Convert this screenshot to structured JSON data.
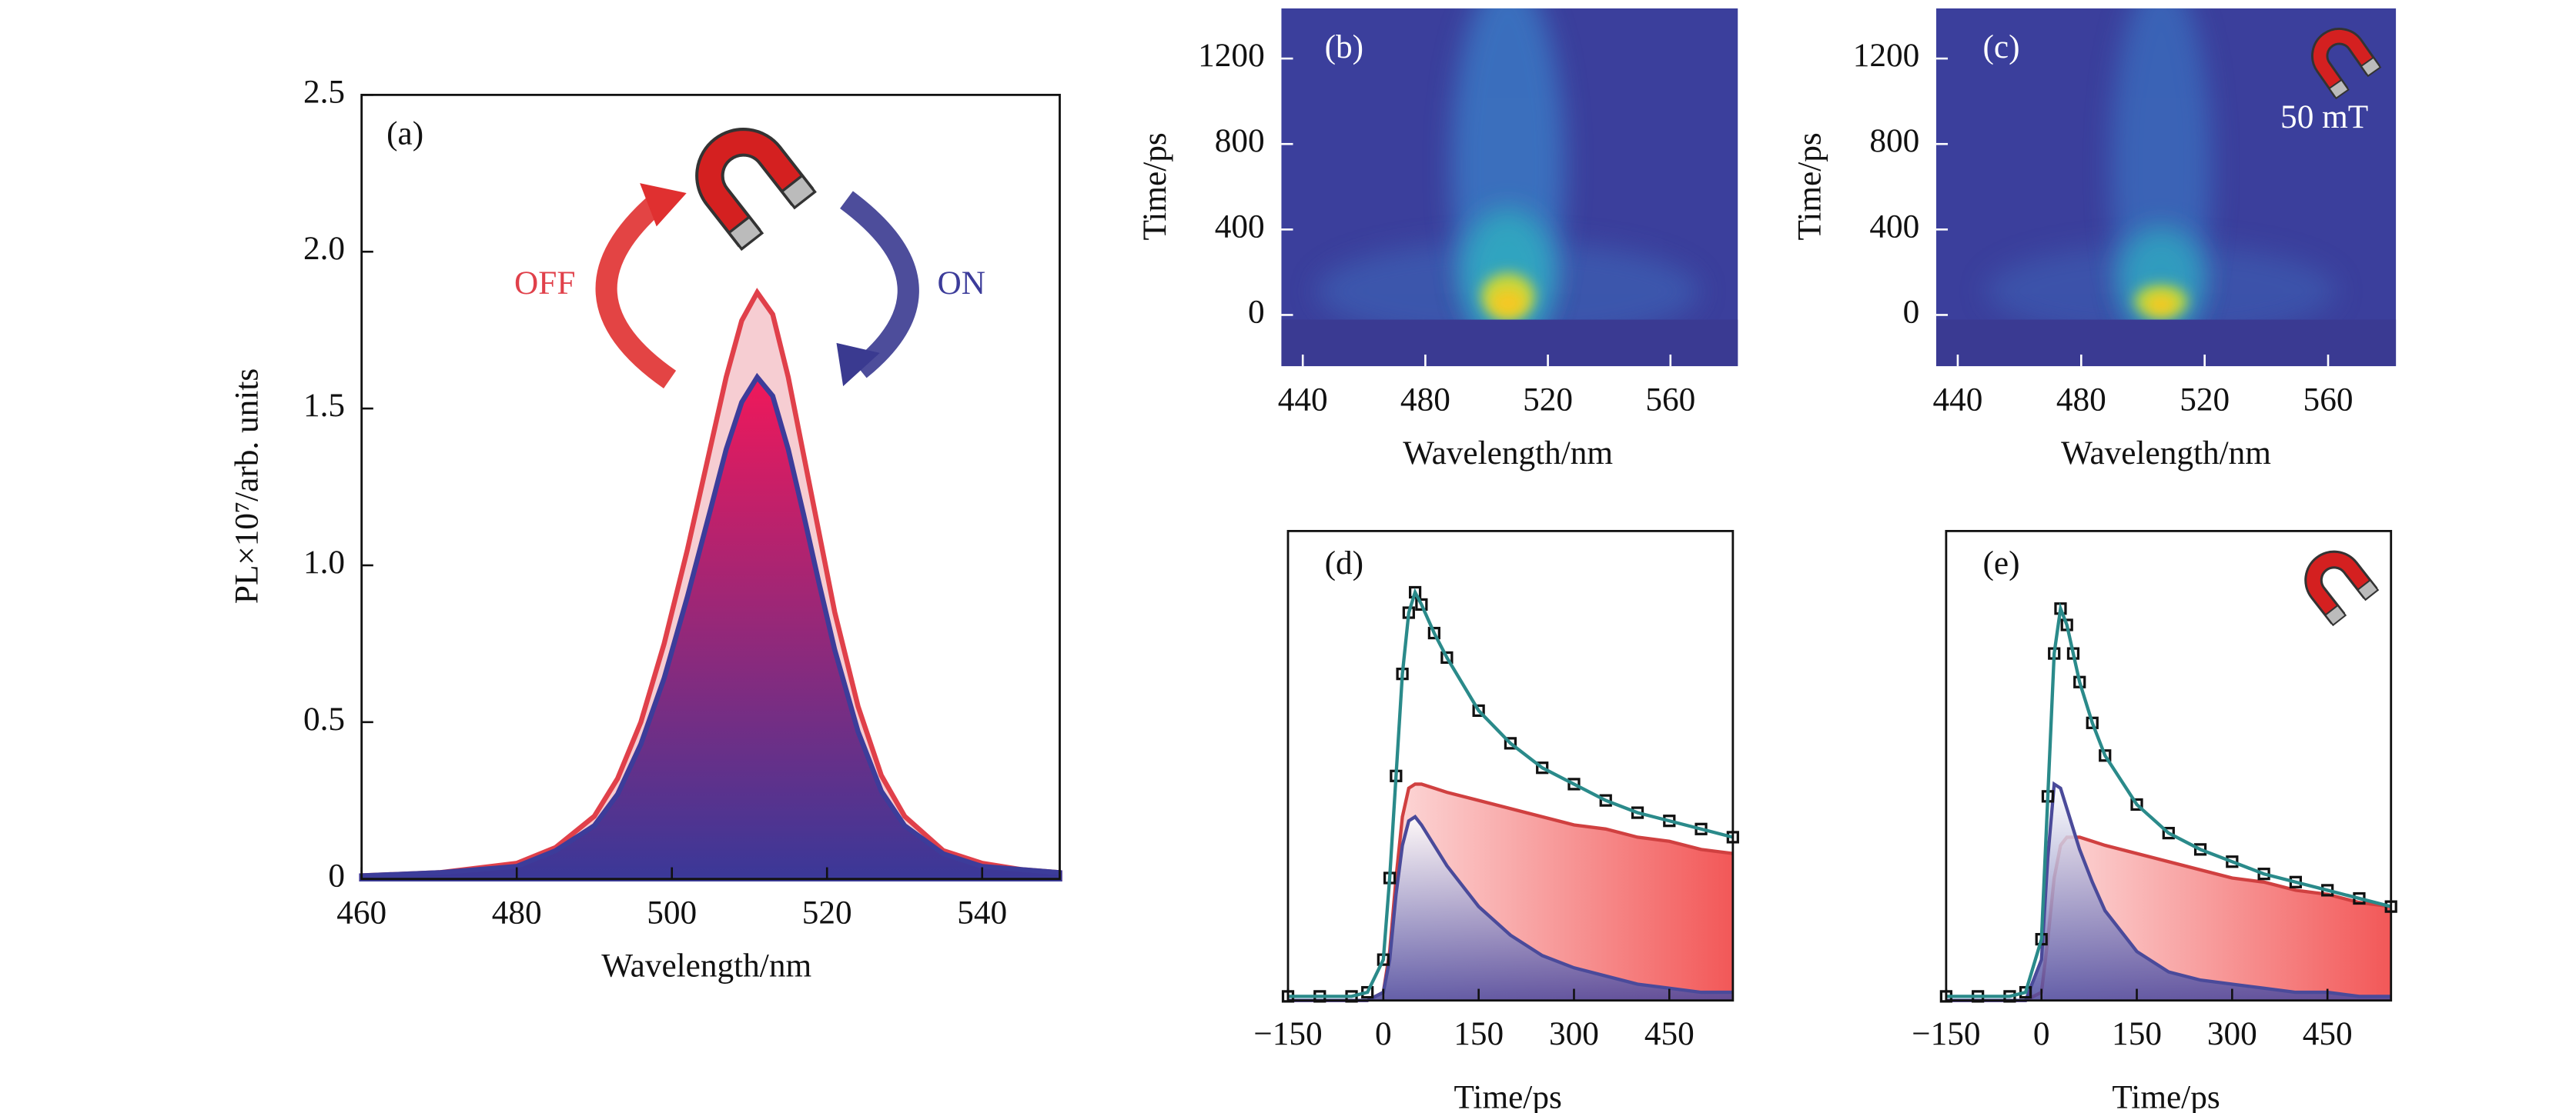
{
  "chart_data": [
    {
      "type": "area",
      "title": "(a)",
      "xlabel": "Wavelength/nm",
      "ylabel": "PL×10⁷/arb. units",
      "x": [
        460,
        470,
        480,
        485,
        490,
        493,
        496,
        499,
        502,
        505,
        507,
        509,
        511,
        513,
        515,
        517,
        519,
        521,
        524,
        527,
        530,
        535,
        540,
        545,
        550
      ],
      "series": [
        {
          "name": "OFF",
          "color": "#e0404a",
          "fill_colors": [
            "#f6cdd2",
            "#f6cdd2"
          ],
          "values": [
            0.01,
            0.02,
            0.05,
            0.1,
            0.2,
            0.32,
            0.5,
            0.75,
            1.05,
            1.38,
            1.6,
            1.78,
            1.87,
            1.8,
            1.6,
            1.35,
            1.1,
            0.85,
            0.55,
            0.33,
            0.2,
            0.09,
            0.05,
            0.03,
            0.02
          ]
        },
        {
          "name": "ON",
          "color": "#3c3c9a",
          "fill_colors": [
            "#f0185a",
            "#3a3898"
          ],
          "values": [
            0.01,
            0.02,
            0.04,
            0.09,
            0.17,
            0.27,
            0.43,
            0.64,
            0.9,
            1.18,
            1.37,
            1.52,
            1.6,
            1.54,
            1.37,
            1.16,
            0.94,
            0.73,
            0.47,
            0.28,
            0.17,
            0.08,
            0.04,
            0.03,
            0.02
          ]
        }
      ],
      "xlim": [
        460,
        550
      ],
      "xticks": [
        460,
        480,
        500,
        520,
        540
      ],
      "ylim": [
        0,
        2.5
      ],
      "yticks": [
        0,
        0.5,
        {
          "value": 1,
          "label": "1.0"
        },
        1.5,
        {
          "value": 2,
          "label": "2.0"
        },
        2.5
      ]
    },
    {
      "type": "heatmap",
      "title": "(b)",
      "xlabel": "Wavelength/nm",
      "ylabel": "Time/ps",
      "xlim": [
        433,
        582
      ],
      "xticks": [
        440,
        480,
        520,
        560
      ],
      "ylim": [
        -240,
        1435
      ],
      "yticks": [
        0,
        400,
        800,
        1200
      ]
    },
    {
      "type": "heatmap",
      "title": "(c)",
      "annotation": "50 mT",
      "xlabel": "Wavelength/nm",
      "ylabel": "Time/ps",
      "xlim": [
        433,
        582
      ],
      "xticks": [
        440,
        480,
        520,
        560
      ],
      "ylim": [
        -240,
        1435
      ],
      "yticks": [
        0,
        400,
        800,
        1200
      ]
    },
    {
      "type": "line",
      "title": "(d)",
      "xlabel": "Time/ps",
      "x": [
        -150,
        -100,
        -50,
        -25,
        0,
        10,
        20,
        30,
        40,
        50,
        60,
        80,
        100,
        150,
        200,
        250,
        300,
        350,
        400,
        450,
        500,
        550
      ],
      "series": [
        {
          "color": "#d04040",
          "fill_colors": [
            "#ffffff",
            "#f03a3a"
          ],
          "fill_direction": "horizontal",
          "values": [
            0,
            0,
            0,
            0,
            0.02,
            0.12,
            0.3,
            0.45,
            0.52,
            0.53,
            0.53,
            0.52,
            0.51,
            0.49,
            0.47,
            0.45,
            0.43,
            0.42,
            0.4,
            0.39,
            0.37,
            0.36
          ]
        },
        {
          "color": "#4a4a9a",
          "fill_colors": [
            "#ffffff",
            "#4a4aa0"
          ],
          "fill_direction": "vertical",
          "values": [
            0,
            0,
            0,
            0,
            0.02,
            0.1,
            0.26,
            0.38,
            0.44,
            0.45,
            0.43,
            0.38,
            0.33,
            0.23,
            0.16,
            0.11,
            0.08,
            0.06,
            0.04,
            0.03,
            0.02,
            0.02
          ]
        },
        {
          "color": "#111111",
          "marker": "square",
          "values": [
            0.01,
            0.01,
            0.01,
            0.02,
            0.1,
            0.3,
            0.55,
            0.8,
            0.95,
            1.0,
            0.97,
            0.9,
            0.84,
            0.71,
            0.63,
            0.57,
            0.53,
            0.49,
            0.46,
            0.44,
            0.42,
            0.4
          ]
        },
        {
          "color": "#2a8a8a",
          "values": [
            0.01,
            0.01,
            0.01,
            0.02,
            0.1,
            0.3,
            0.55,
            0.8,
            0.95,
            1.0,
            0.97,
            0.9,
            0.84,
            0.71,
            0.63,
            0.57,
            0.53,
            0.49,
            0.46,
            0.44,
            0.42,
            0.4
          ]
        }
      ],
      "xlim": [
        -150,
        550
      ],
      "xticks": [
        {
          "value": -150,
          "label": "−150"
        },
        0,
        150,
        300,
        450
      ],
      "ylim": [
        0,
        1.15
      ]
    },
    {
      "type": "line",
      "title": "(e)",
      "xlabel": "Time/ps",
      "x": [
        -150,
        -100,
        -50,
        -25,
        0,
        10,
        20,
        30,
        40,
        50,
        60,
        80,
        100,
        150,
        200,
        250,
        300,
        350,
        400,
        450,
        500,
        550
      ],
      "series": [
        {
          "color": "#d04040",
          "fill_colors": [
            "#ffffff",
            "#f03a3a"
          ],
          "fill_direction": "horizontal",
          "values": [
            0,
            0,
            0,
            0,
            0.02,
            0.15,
            0.3,
            0.38,
            0.4,
            0.4,
            0.4,
            0.39,
            0.38,
            0.36,
            0.34,
            0.32,
            0.3,
            0.29,
            0.27,
            0.26,
            0.24,
            0.23
          ]
        },
        {
          "color": "#4a4a9a",
          "fill_colors": [
            "#ffffff",
            "#4a4aa0"
          ],
          "fill_direction": "vertical",
          "values": [
            0,
            0,
            0,
            0,
            0.1,
            0.35,
            0.53,
            0.52,
            0.47,
            0.42,
            0.37,
            0.29,
            0.22,
            0.12,
            0.07,
            0.05,
            0.04,
            0.03,
            0.02,
            0.02,
            0.01,
            0.01
          ]
        },
        {
          "color": "#111111",
          "marker": "square",
          "values": [
            0.01,
            0.01,
            0.01,
            0.02,
            0.15,
            0.5,
            0.85,
            0.96,
            0.92,
            0.85,
            0.78,
            0.68,
            0.6,
            0.48,
            0.41,
            0.37,
            0.34,
            0.31,
            0.29,
            0.27,
            0.25,
            0.23
          ]
        },
        {
          "color": "#2a8a8a",
          "values": [
            0.01,
            0.01,
            0.01,
            0.02,
            0.15,
            0.5,
            0.85,
            0.96,
            0.92,
            0.85,
            0.78,
            0.68,
            0.6,
            0.48,
            0.41,
            0.37,
            0.34,
            0.31,
            0.29,
            0.27,
            0.25,
            0.23
          ]
        }
      ],
      "xlim": [
        -150,
        550
      ],
      "xticks": [
        {
          "value": -150,
          "label": "−150"
        },
        0,
        150,
        300,
        450
      ],
      "ylim": [
        0,
        1.15
      ]
    }
  ]
}
